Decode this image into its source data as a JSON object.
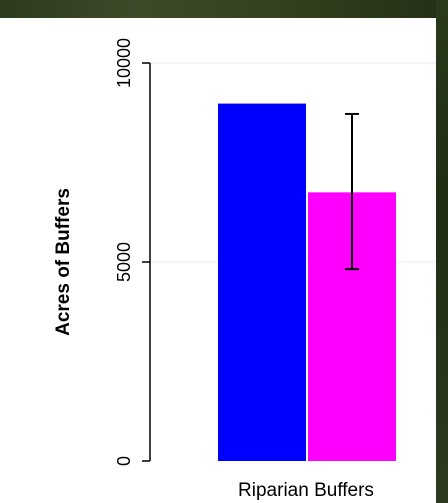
{
  "chart_data": {
    "type": "bar",
    "categories": [
      "Riparian Buffers"
    ],
    "series": [
      {
        "color": "#0000ff",
        "values": [
          8980
        ]
      },
      {
        "color": "#ff00ff",
        "values": [
          6750
        ],
        "error": [
          [
            4820,
            8720
          ]
        ]
      }
    ],
    "xlabel": "",
    "ylabel": "Acres of Buffers",
    "ylim": [
      0,
      10000
    ],
    "yticks": [
      0,
      5000,
      10000
    ],
    "ytick_labels": [
      "0",
      "5000",
      "10000"
    ],
    "grid": true
  }
}
